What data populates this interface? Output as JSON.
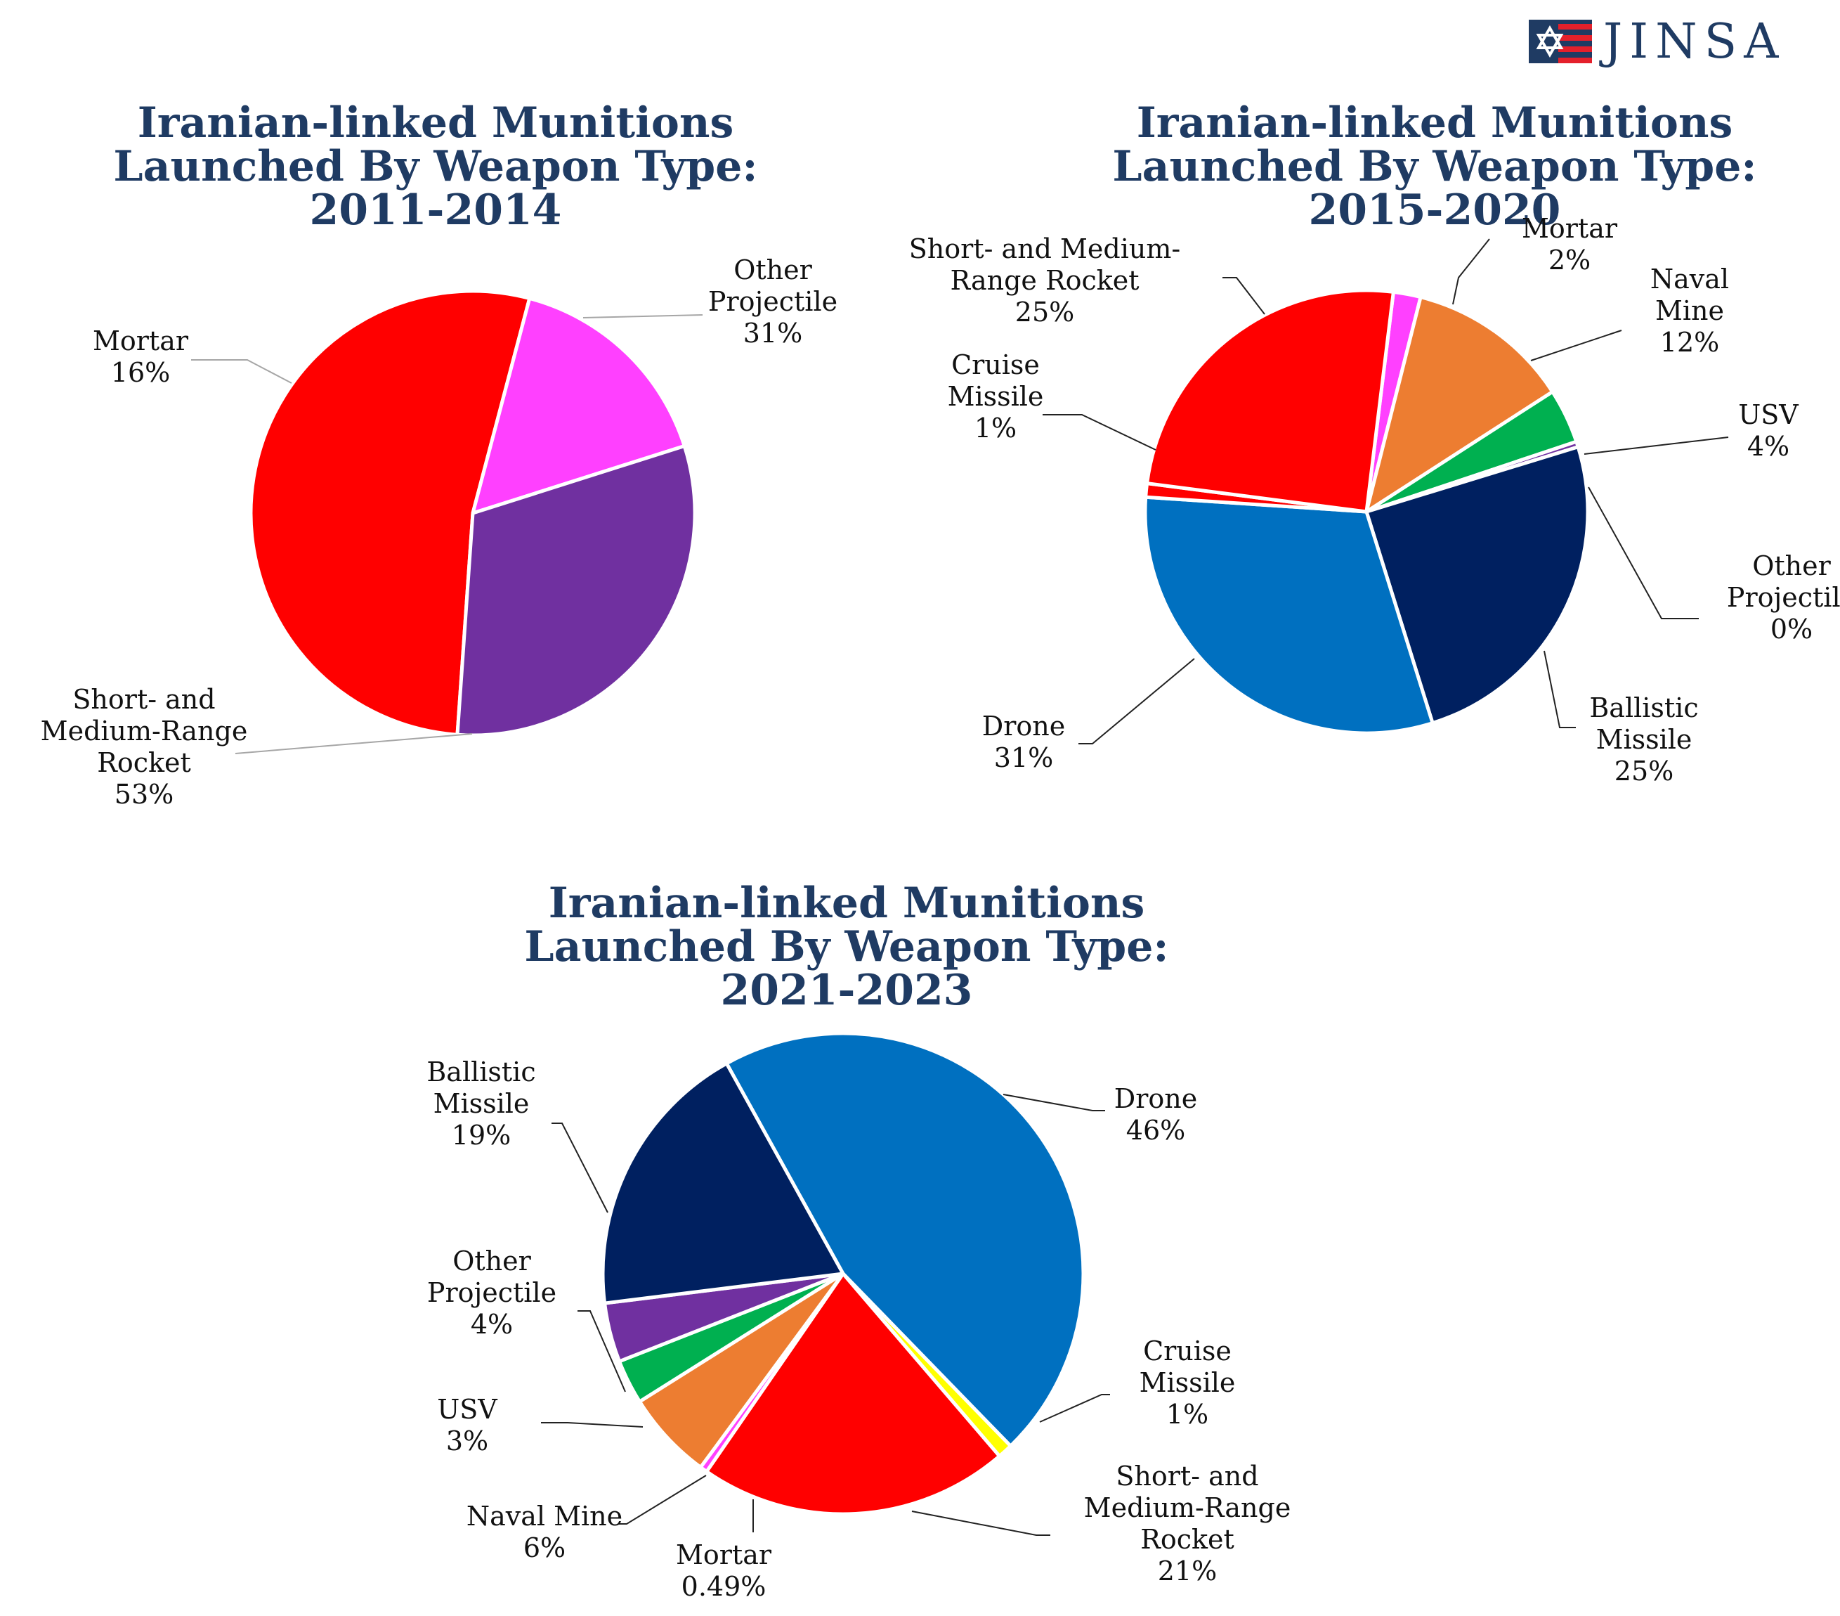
{
  "logo": {
    "text": "JINSA",
    "colors": {
      "blue": "#1f3b63",
      "red": "#e4202b"
    }
  },
  "chart_data": [
    {
      "type": "pie",
      "title": [
        "Iranian-linked Munitions",
        "Launched By Weapon Type:",
        "2011-2014"
      ],
      "slices": [
        {
          "name": "Short- and Medium-Range Rocket",
          "value": 53,
          "label": [
            "Short- and",
            "Medium-Range",
            "Rocket",
            "53%"
          ],
          "color": "#ff0000"
        },
        {
          "name": "Mortar",
          "value": 16,
          "label": [
            "Mortar",
            "16%"
          ],
          "color": "#ff40ff"
        },
        {
          "name": "Other Projectile",
          "value": 31,
          "label": [
            "Other",
            "Projectile",
            "31%"
          ],
          "color": "#7030a0"
        }
      ]
    },
    {
      "type": "pie",
      "title": [
        "Iranian-linked Munitions",
        "Launched By Weapon Type:",
        "2015-2020"
      ],
      "slices": [
        {
          "name": "Mortar",
          "value": 2,
          "label": [
            "Mortar",
            "2%"
          ],
          "color": "#ff40ff"
        },
        {
          "name": "Naval Mine",
          "value": 12,
          "label": [
            "Naval",
            "Mine",
            "12%"
          ],
          "color": "#ed7d31"
        },
        {
          "name": "USV",
          "value": 4,
          "label": [
            "USV",
            "4%"
          ],
          "color": "#00b050"
        },
        {
          "name": "Other Projectile",
          "value": 0.4,
          "label": [
            "Other",
            "Projectile",
            "0%"
          ],
          "color": "#7030a0"
        },
        {
          "name": "Ballistic Missile",
          "value": 25,
          "label": [
            "Ballistic",
            "Missile",
            "25%"
          ],
          "color": "#002060"
        },
        {
          "name": "Drone",
          "value": 31,
          "label": [
            "Drone",
            "31%"
          ],
          "color": "#0070c0"
        },
        {
          "name": "Cruise Missile",
          "value": 1,
          "label": [
            "Cruise",
            "Missile",
            "1%"
          ],
          "color": "#ff0000"
        },
        {
          "name": "Short- and Medium-Range Rocket",
          "value": 25,
          "label": [
            "Short- and Medium-",
            "Range Rocket",
            "25%"
          ],
          "color": "#ff0000"
        }
      ]
    },
    {
      "type": "pie",
      "title": [
        "Iranian-linked Munitions",
        "Launched By Weapon Type:",
        "2021-2023"
      ],
      "slices": [
        {
          "name": "Drone",
          "value": 46,
          "label": [
            "Drone",
            "46%"
          ],
          "color": "#0070c0"
        },
        {
          "name": "Cruise Missile",
          "value": 1,
          "label": [
            "Cruise",
            "Missile",
            "1%"
          ],
          "color": "#ffff00"
        },
        {
          "name": "Short- and Medium-Range Rocket",
          "value": 21,
          "label": [
            "Short- and",
            "Medium-Range",
            "Rocket",
            "21%"
          ],
          "color": "#ff0000"
        },
        {
          "name": "Mortar",
          "value": 0.49,
          "label": [
            "Mortar",
            "0.49%"
          ],
          "color": "#ff40ff"
        },
        {
          "name": "Naval Mine",
          "value": 6,
          "label": [
            "Naval Mine",
            "6%"
          ],
          "color": "#ed7d31"
        },
        {
          "name": "USV",
          "value": 3,
          "label": [
            "USV",
            "3%"
          ],
          "color": "#00b050"
        },
        {
          "name": "Other Projectile",
          "value": 4,
          "label": [
            "Other",
            "Projectile",
            "4%"
          ],
          "color": "#7030a0"
        },
        {
          "name": "Ballistic Missile",
          "value": 19,
          "label": [
            "Ballistic",
            "Missile",
            "19%"
          ],
          "color": "#002060"
        }
      ]
    }
  ]
}
